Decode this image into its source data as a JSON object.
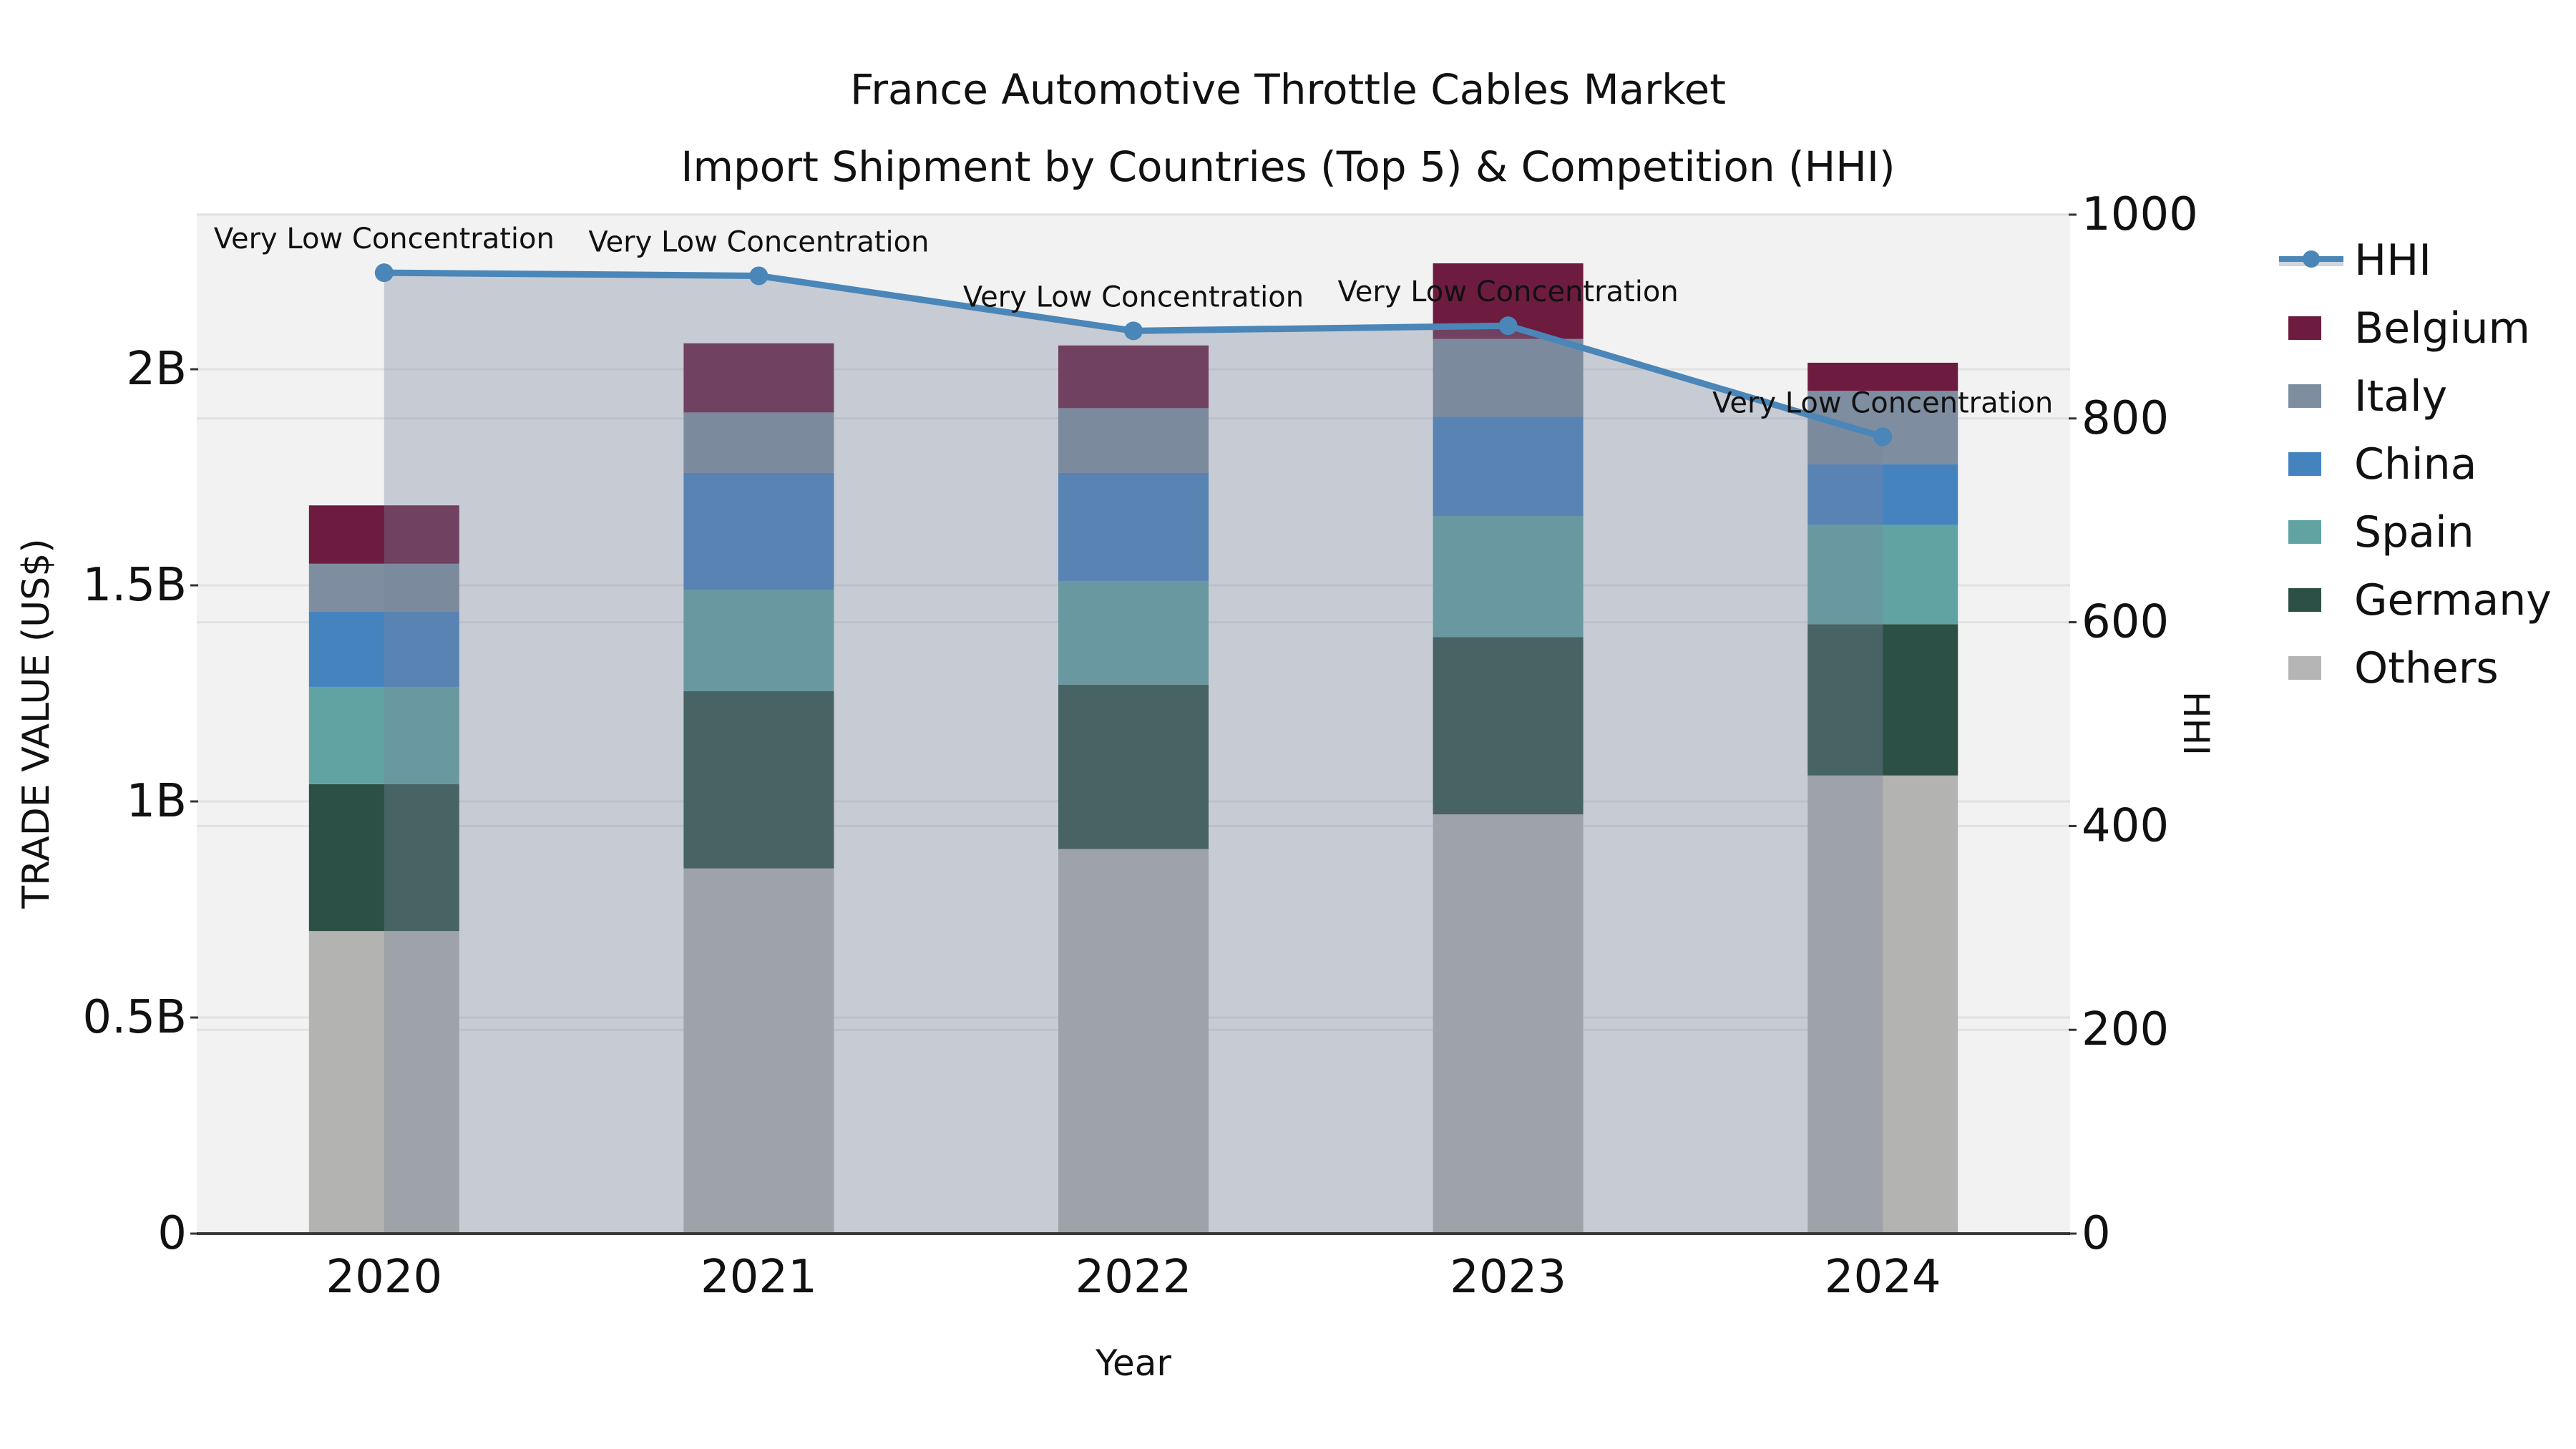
{
  "title": {
    "line1": "France Automotive Throttle Cables Market",
    "line2": "Import Shipment by Countries (Top 5) & Competition (HHI)"
  },
  "chart_data": {
    "type": "bar",
    "subtype": "stacked-bar-with-line",
    "title": "France Automotive Throttle Cables Market — Import Shipment by Countries (Top 5) & Competition (HHI)",
    "categories": [
      "2020",
      "2021",
      "2022",
      "2023",
      "2024"
    ],
    "stacked_series": [
      {
        "name": "Others",
        "color": "#b3b3b1",
        "values": [
          0.7,
          0.845,
          0.89,
          0.97,
          1.06
        ]
      },
      {
        "name": "Germany",
        "color": "#2d5046",
        "values": [
          0.34,
          0.41,
          0.38,
          0.41,
          0.35
        ]
      },
      {
        "name": "Spain",
        "color": "#61a3a3",
        "values": [
          0.225,
          0.235,
          0.24,
          0.28,
          0.23
        ]
      },
      {
        "name": "China",
        "color": "#4583bf",
        "values": [
          0.175,
          0.27,
          0.25,
          0.23,
          0.14
        ]
      },
      {
        "name": "Italy",
        "color": "#7e8da0",
        "values": [
          0.11,
          0.14,
          0.15,
          0.18,
          0.17
        ]
      },
      {
        "name": "Belgium",
        "color": "#6d1c40",
        "values": [
          0.135,
          0.16,
          0.145,
          0.175,
          0.065
        ]
      }
    ],
    "bar_totals": [
      1.685,
      2.06,
      2.055,
      2.245,
      2.015
    ],
    "line_series": {
      "name": "HHI",
      "color": "#4a86b8",
      "fill_color": "rgba(121,133,156,0.36)",
      "values": [
        943,
        940,
        886,
        891,
        782
      ]
    },
    "annotations": [
      "Very Low Concentration",
      "Very Low Concentration",
      "Very Low Concentration",
      "Very Low Concentration",
      "Very Low Concentration"
    ],
    "left_axis": {
      "label": "TRADE VALUE (US$)",
      "tick_labels": [
        "0",
        "0.5B",
        "1B",
        "1.5B",
        "2B"
      ],
      "tick_values": [
        0,
        0.5,
        1,
        1.5,
        2
      ],
      "ylim": [
        0,
        2.36
      ]
    },
    "right_axis": {
      "label": "HHI",
      "tick_labels": [
        "0",
        "200",
        "400",
        "600",
        "800",
        "1000"
      ],
      "tick_values": [
        0,
        200,
        400,
        600,
        800,
        1000
      ],
      "ylim": [
        0,
        1000
      ]
    },
    "x_axis": {
      "label": "Year"
    },
    "legend": [
      {
        "label": "HHI",
        "swatch": "line",
        "color": "#4a86b8",
        "band_color": "#cfd4de"
      },
      {
        "label": "Belgium",
        "swatch": "box",
        "color": "#6d1c40"
      },
      {
        "label": "Italy",
        "swatch": "box",
        "color": "#7e8da0"
      },
      {
        "label": "China",
        "swatch": "box",
        "color": "#4583bf"
      },
      {
        "label": "Spain",
        "swatch": "box",
        "color": "#61a3a3"
      },
      {
        "label": "Germany",
        "swatch": "box",
        "color": "#2d5046"
      },
      {
        "label": "Others",
        "swatch": "box",
        "color": "#b5b5b5"
      }
    ],
    "layout": {
      "plot_bg": "#f2f2f2",
      "grid_color": "#e2e2e4",
      "axis_line_color": "#3a3a3a",
      "grid": true,
      "legend_position": "right"
    }
  }
}
